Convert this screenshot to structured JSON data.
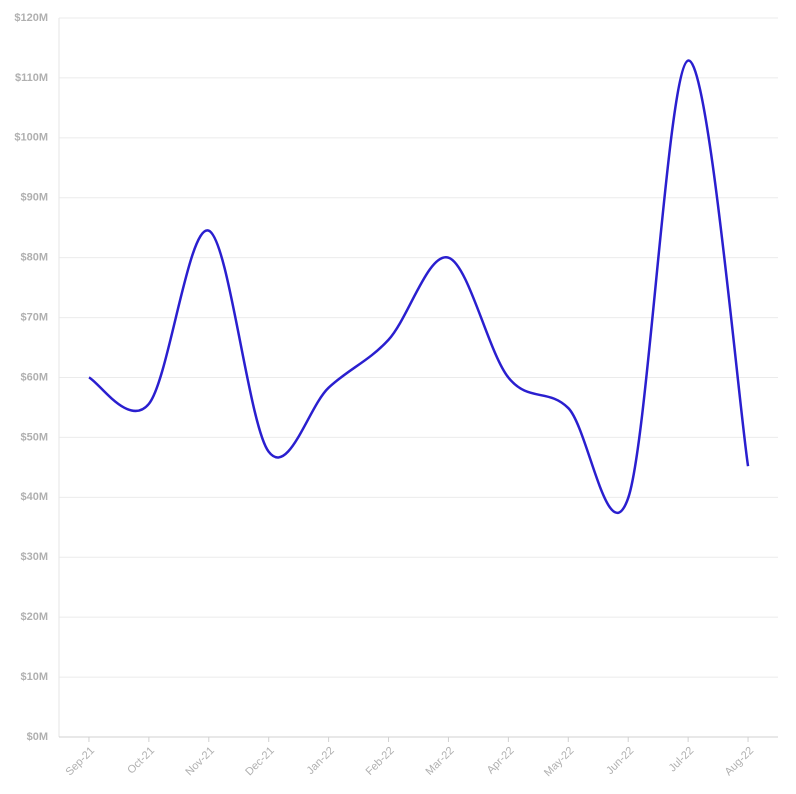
{
  "chart_data": {
    "type": "line",
    "categories": [
      "Sep-21",
      "Oct-21",
      "Nov-21",
      "Dec-21",
      "Jan-22",
      "Feb-22",
      "Mar-22",
      "Apr-22",
      "May-22",
      "Jun-22",
      "Jul-22",
      "Aug-22"
    ],
    "series": [
      {
        "color": "#2a1fcf",
        "values": [
          60,
          55.6,
          84.5,
          47.6,
          58.3,
          66.3,
          80,
          60,
          54.9,
          39.9,
          112.9,
          45.2
        ]
      }
    ],
    "ylim": [
      0,
      120
    ],
    "yticks": [
      {
        "value": 0,
        "label": "$0M"
      },
      {
        "value": 10,
        "label": "$10M"
      },
      {
        "value": 20,
        "label": "$20M"
      },
      {
        "value": 30,
        "label": "$30M"
      },
      {
        "value": 40,
        "label": "$40M"
      },
      {
        "value": 50,
        "label": "$50M"
      },
      {
        "value": 60,
        "label": "$60M"
      },
      {
        "value": 70,
        "label": "$70M"
      },
      {
        "value": 80,
        "label": "$80M"
      },
      {
        "value": 90,
        "label": "$90M"
      },
      {
        "value": 100,
        "label": "$100M"
      },
      {
        "value": 110,
        "label": "$110M"
      },
      {
        "value": 120,
        "label": "$120M"
      }
    ],
    "grid": true
  }
}
